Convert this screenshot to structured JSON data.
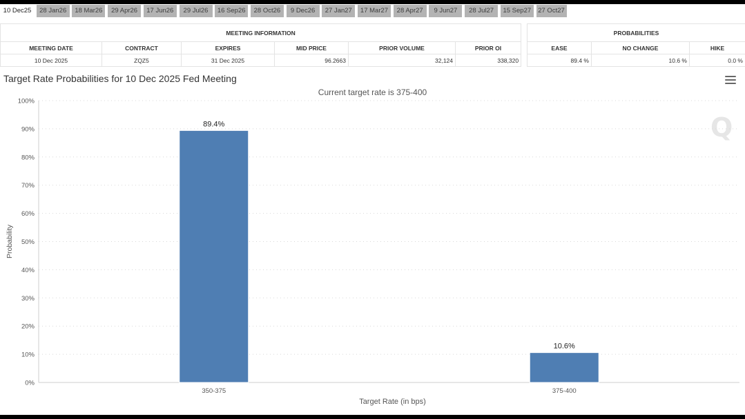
{
  "tabs": [
    {
      "label": "10 Dec25",
      "active": true
    },
    {
      "label": "28 Jan26",
      "active": false
    },
    {
      "label": "18 Mar26",
      "active": false
    },
    {
      "label": "29 Apr26",
      "active": false
    },
    {
      "label": "17 Jun26",
      "active": false
    },
    {
      "label": "29 Jul26",
      "active": false
    },
    {
      "label": "16 Sep26",
      "active": false
    },
    {
      "label": "28 Oct26",
      "active": false
    },
    {
      "label": "9 Dec26",
      "active": false
    },
    {
      "label": "27 Jan27",
      "active": false
    },
    {
      "label": "17 Mar27",
      "active": false
    },
    {
      "label": "28 Apr27",
      "active": false
    },
    {
      "label": "9 Jun27",
      "active": false
    },
    {
      "label": "28 Jul27",
      "active": false
    },
    {
      "label": "15 Sep27",
      "active": false
    },
    {
      "label": "27 Oct27",
      "active": false
    }
  ],
  "meeting_info": {
    "title": "MEETING INFORMATION",
    "headers": [
      "MEETING DATE",
      "CONTRACT",
      "EXPIRES",
      "MID PRICE",
      "PRIOR VOLUME",
      "PRIOR OI"
    ],
    "row": [
      "10 Dec 2025",
      "ZQZ5",
      "31 Dec 2025",
      "96.2663",
      "32,124",
      "338,320"
    ]
  },
  "probabilities": {
    "title": "PROBABILITIES",
    "headers": [
      "EASE",
      "NO CHANGE",
      "HIKE"
    ],
    "row": [
      "89.4 %",
      "10.6 %",
      "0.0 %"
    ]
  },
  "watermark": "Q",
  "chart_data": {
    "type": "bar",
    "title": "Target Rate Probabilities for 10 Dec 2025 Fed Meeting",
    "subtitle": "Current target rate is 375-400",
    "xlabel": "Target Rate (in bps)",
    "ylabel": "Probability",
    "categories": [
      "350-375",
      "375-400"
    ],
    "values": [
      89.4,
      10.6
    ],
    "data_labels": [
      "89.4%",
      "10.6%"
    ],
    "ylim": [
      0,
      100
    ],
    "yticks": [
      "0%",
      "10%",
      "20%",
      "30%",
      "40%",
      "50%",
      "60%",
      "70%",
      "80%",
      "90%",
      "100%"
    ],
    "grid": true,
    "legend": "none",
    "bar_color": "#4f7eb3"
  }
}
